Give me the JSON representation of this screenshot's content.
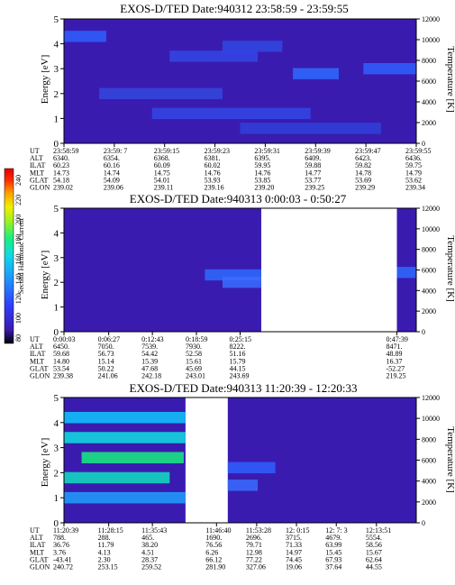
{
  "chart_data": [
    {
      "type": "heatmap",
      "title": "EXOS-D/TED   Date:940312  23:58:59 - 23:59:55",
      "ylabel": "Energy [eV]",
      "ylabel_right": "Temperature [K]",
      "ylim": [
        0,
        5
      ],
      "yticks": [
        "0",
        "1",
        "2",
        "3",
        "4",
        "5"
      ],
      "ylim_right": [
        0,
        12000
      ],
      "yticks_right": [
        "0",
        "2000",
        "4000",
        "6000",
        "8000",
        "10000",
        "12000"
      ],
      "x_start": "23:58:59",
      "x_end": "23:59:55",
      "data_coverage": [
        [
          0,
          1
        ]
      ],
      "background_color": "#3a1bb0",
      "bands": [
        {
          "energy": 4.3,
          "x": [
            0.0,
            0.12
          ],
          "color": "#2f5fff"
        },
        {
          "energy": 3.9,
          "x": [
            0.45,
            0.62
          ],
          "color": "#3048e0"
        },
        {
          "energy": 3.5,
          "x": [
            0.3,
            0.55
          ],
          "color": "#3446e6"
        },
        {
          "energy": 2.8,
          "x": [
            0.65,
            0.78
          ],
          "color": "#2f6aff"
        },
        {
          "energy": 3.0,
          "x": [
            0.85,
            1.0
          ],
          "color": "#2f5fff"
        },
        {
          "energy": 2.0,
          "x": [
            0.1,
            0.45
          ],
          "color": "#3448dd"
        },
        {
          "energy": 1.2,
          "x": [
            0.25,
            0.7
          ],
          "color": "#3446e6"
        },
        {
          "energy": 0.6,
          "x": [
            0.5,
            0.9
          ],
          "color": "#3040d8"
        }
      ],
      "orbit": {
        "rows": [
          {
            "label": "UT",
            "values": [
              "23:58:59",
              "23:59: 7",
              "23:59:15",
              "23:59:23",
              "23:59:31",
              "23:59:39",
              "23:59:47",
              "23:59:55"
            ]
          },
          {
            "label": "ALT",
            "values": [
              "6340.",
              "6354.",
              "6368.",
              "6381.",
              "6395.",
              "6409.",
              "6423.",
              "6436."
            ]
          },
          {
            "label": "ILAT",
            "values": [
              "60.23",
              "60.16",
              "60.09",
              "60.02",
              "59.95",
              "59.88",
              "59.82",
              "59.75"
            ]
          },
          {
            "label": "MLT",
            "values": [
              "14.73",
              "14.74",
              "14.75",
              "14.76",
              "14.76",
              "14.77",
              "14.78",
              "14.79"
            ]
          },
          {
            "label": "GLAT",
            "values": [
              "54.18",
              "54.09",
              "54.01",
              "53.93",
              "53.85",
              "53.77",
              "53.69",
              "53.62"
            ]
          },
          {
            "label": "GLON",
            "values": [
              "239.02",
              "239.06",
              "239.11",
              "239.16",
              "239.20",
              "239.25",
              "239.29",
              "239.34"
            ]
          }
        ],
        "positions": [
          0,
          0.1429,
          0.2857,
          0.4286,
          0.5714,
          0.7143,
          0.8571,
          1.0
        ]
      }
    },
    {
      "type": "heatmap",
      "title": "EXOS-D/TED   Date:940313   0:00:03 - 0:50:27",
      "ylabel": "Energy [eV]",
      "ylabel_right": "Temperature [K]",
      "ylim": [
        0,
        5
      ],
      "yticks": [
        "0",
        "1",
        "2",
        "3",
        "4",
        "5"
      ],
      "ylim_right": [
        0,
        12000
      ],
      "yticks_right": [
        "0",
        "2000",
        "4000",
        "6000",
        "8000",
        "10000",
        "12000"
      ],
      "x_start": "0:00:03",
      "x_end": "0:50:27",
      "data_coverage": [
        [
          0,
          0.56
        ],
        [
          0.945,
          1
        ]
      ],
      "background_color": "#3a1bb0",
      "bands": [
        {
          "energy": 2.3,
          "x": [
            0.4,
            0.56
          ],
          "color": "#2f6aff"
        },
        {
          "energy": 2.0,
          "x": [
            0.45,
            0.56
          ],
          "color": "#3a6cff"
        },
        {
          "energy": 2.4,
          "x": [
            0.945,
            1.0
          ],
          "color": "#2f6aff"
        }
      ],
      "orbit": {
        "rows": [
          {
            "label": "UT",
            "values": [
              "0:00:03",
              "0:06:27",
              "0:12:43",
              "0:18:59",
              "0:25:15",
              "0:47:39"
            ]
          },
          {
            "label": "ALT",
            "values": [
              "6450.",
              "7050.",
              "7539.",
              "7930.",
              "8222.",
              "8471."
            ]
          },
          {
            "label": "ILAT",
            "values": [
              "59.68",
              "56.73",
              "54.42",
              "52.58",
              "51.16",
              "48.89"
            ]
          },
          {
            "label": "MLT",
            "values": [
              "14.80",
              "15.14",
              "15.39",
              "15.61",
              "15.79",
              "16.37"
            ]
          },
          {
            "label": "GLAT",
            "values": [
              "53.54",
              "50.22",
              "47.68",
              "45.69",
              "44.15",
              "-52.27"
            ]
          },
          {
            "label": "GLON",
            "values": [
              "239.38",
              "241.06",
              "242.18",
              "243.01",
              "243.69",
              "219.25"
            ]
          }
        ],
        "positions": [
          0,
          0.127,
          0.251,
          0.376,
          0.5,
          0.945
        ]
      }
    },
    {
      "type": "heatmap",
      "title": "EXOS-D/TED   Date:940313  11:20:39 - 12:20:33",
      "ylabel": "Energy [eV]",
      "ylabel_right": "Temperature [K]",
      "ylim": [
        0,
        5
      ],
      "yticks": [
        "0",
        "1",
        "2",
        "3",
        "4",
        "5"
      ],
      "ylim_right": [
        0,
        12000
      ],
      "yticks_right": [
        "0",
        "2000",
        "4000",
        "6000",
        "8000",
        "10000",
        "12000"
      ],
      "x_start": "11:20:39",
      "x_end": "12:20:33",
      "data_coverage": [
        [
          0,
          0.345
        ],
        [
          0.465,
          1
        ]
      ],
      "background_color": "#3a1bb0",
      "bands": [
        {
          "energy": 4.2,
          "x": [
            0.0,
            0.345
          ],
          "color": "#0fc8ff"
        },
        {
          "energy": 3.4,
          "x": [
            0.0,
            0.345
          ],
          "color": "#10e0e0"
        },
        {
          "energy": 2.6,
          "x": [
            0.05,
            0.34
          ],
          "color": "#18f080"
        },
        {
          "energy": 1.8,
          "x": [
            0.0,
            0.3
          ],
          "color": "#10e0c0"
        },
        {
          "energy": 1.0,
          "x": [
            0.0,
            0.345
          ],
          "color": "#20a0ff"
        },
        {
          "energy": 2.2,
          "x": [
            0.465,
            0.6
          ],
          "color": "#2f5fff"
        },
        {
          "energy": 1.5,
          "x": [
            0.465,
            0.55
          ],
          "color": "#3a6cff"
        }
      ],
      "orbit": {
        "rows": [
          {
            "label": "UT",
            "values": [
              "11:20:39",
              "11:28:15",
              "11:35:43",
              "11:46:40",
              "11:53:28",
              "12: 0:15",
              "12: 7: 3",
              "12:13:51"
            ]
          },
          {
            "label": "ALT",
            "values": [
              "788.",
              "288.",
              "465.",
              "1690.",
              "2696.",
              "3715.",
              "4679.",
              "5554."
            ]
          },
          {
            "label": "ILAT",
            "values": [
              "36.76",
              "11.79",
              "38.20",
              "76.56",
              "79.71",
              "71.33",
              "63.99",
              "58.56"
            ]
          },
          {
            "label": "MLT",
            "values": [
              "3.76",
              "4.13",
              "4.51",
              "6.26",
              "12.98",
              "14.97",
              "15.45",
              "15.67"
            ]
          },
          {
            "label": "GLAT",
            "values": [
              "-43.41",
              "2.30",
              "28.37",
              "66.12",
              "77.22",
              "74.45",
              "67.93",
              "62.64"
            ]
          },
          {
            "label": "GLON",
            "values": [
              "240.72",
              "253.15",
              "259.52",
              "281.90",
              "327.06",
              "19.06",
              "37.64",
              "44.55"
            ]
          }
        ],
        "positions": [
          0,
          0.127,
          0.251,
          0.433,
          0.547,
          0.66,
          0.773,
          0.887
        ]
      }
    }
  ],
  "colorbar": {
    "label": "Second Harmonic Current",
    "ticks": [
      "80",
      "100",
      "120",
      "140",
      "160",
      "180",
      "200",
      "220",
      "240"
    ],
    "colors": [
      "#000000",
      "#3a1bb0",
      "#2f3fff",
      "#1f8fff",
      "#10d8e8",
      "#18f080",
      "#a0f020",
      "#f0f000",
      "#ffa000",
      "#ff3000",
      "#e00000"
    ]
  }
}
